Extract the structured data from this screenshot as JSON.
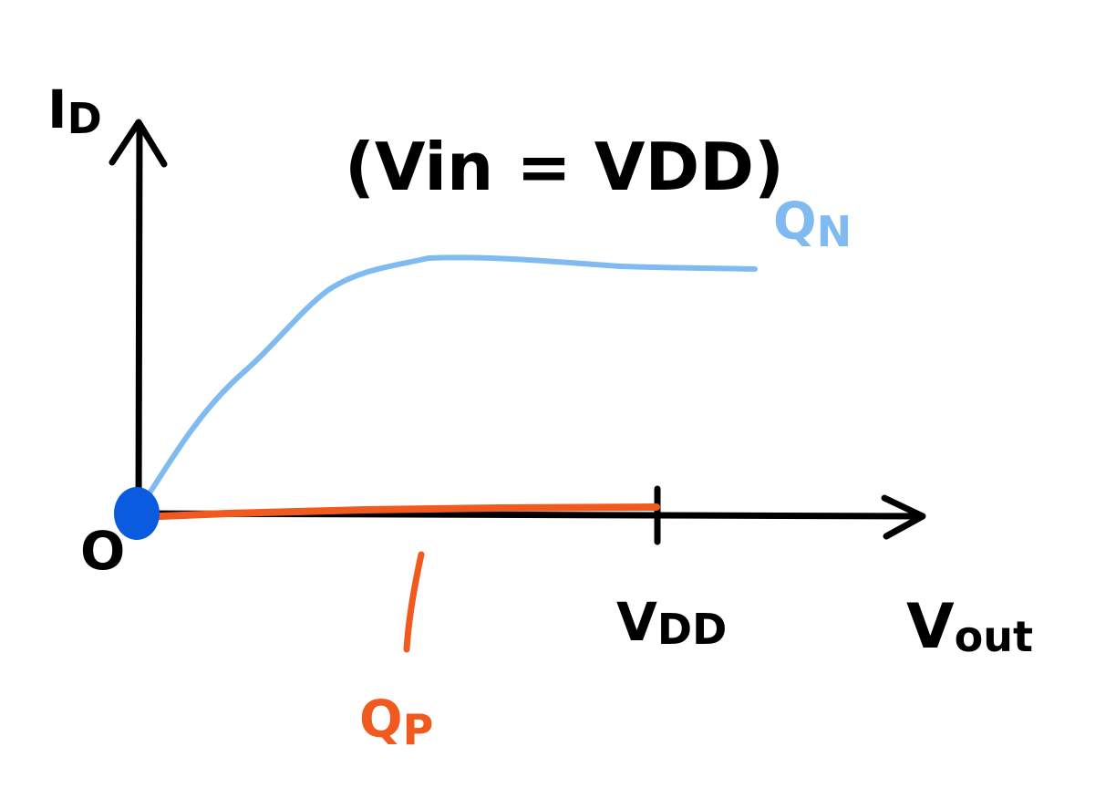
{
  "diagram": {
    "title": "(Vin = VDD)",
    "y_axis_label": {
      "main": "I",
      "sub": "D"
    },
    "x_axis_label": {
      "main": "V",
      "sub": "out"
    },
    "origin_label": "O",
    "x_tick_label": {
      "main": "V",
      "sub": "DD"
    },
    "series": [
      {
        "name": "Q",
        "subscript": "N",
        "color": "#7fbaf0"
      },
      {
        "name": "Q",
        "subscript": "P",
        "color": "#f05a1e"
      }
    ],
    "colors": {
      "axes": "#000000",
      "origin_point": "#0b5be0"
    }
  }
}
